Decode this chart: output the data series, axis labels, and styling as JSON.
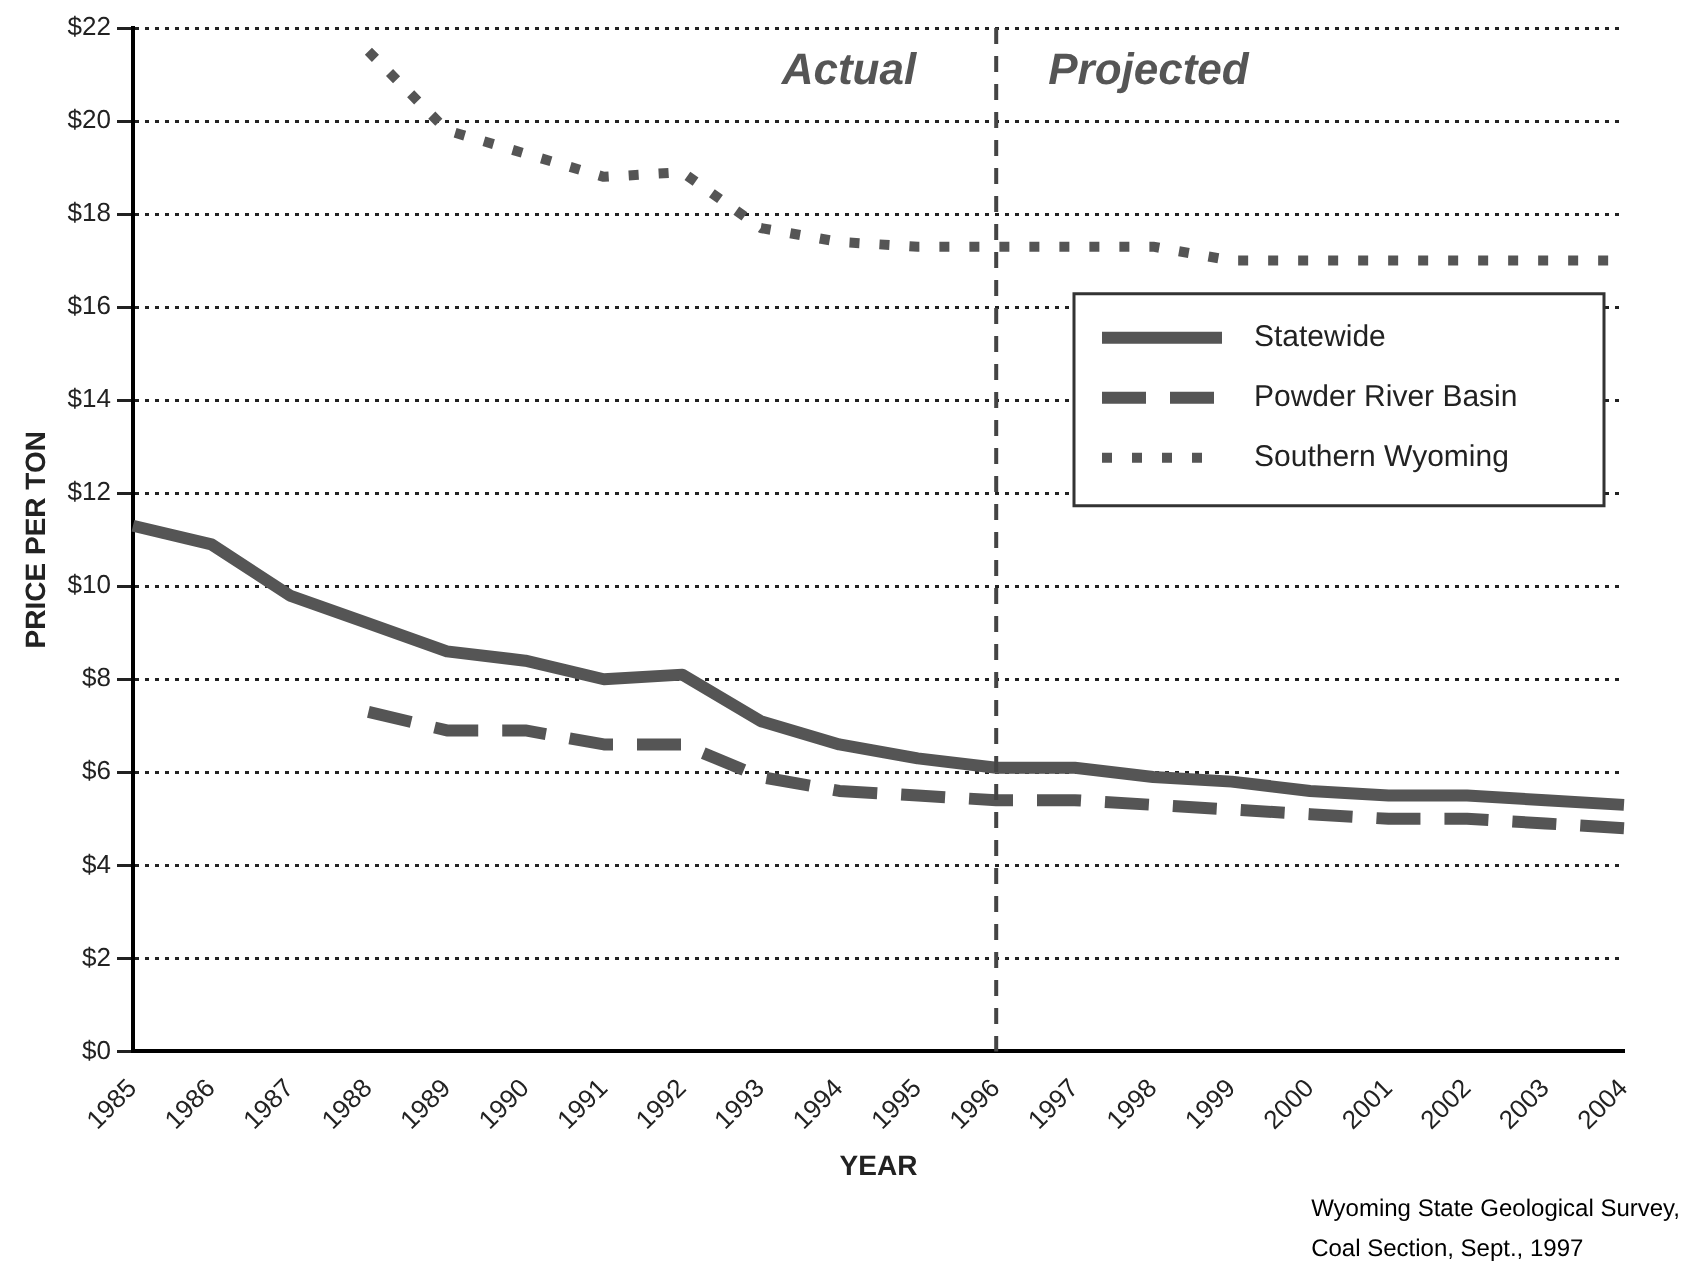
{
  "chart_data": {
    "type": "line",
    "xlabel": "YEAR",
    "ylabel": "PRICE PER TON",
    "categories": [
      "1985",
      "1986",
      "1987",
      "1988",
      "1989",
      "1990",
      "1991",
      "1992",
      "1993",
      "1994",
      "1995",
      "1996",
      "1997",
      "1998",
      "1999",
      "2000",
      "2001",
      "2002",
      "2003",
      "2004"
    ],
    "series": [
      {
        "name": "Statewide",
        "color": "#555555",
        "line_style": "solid",
        "values": [
          11.3,
          10.9,
          9.8,
          9.2,
          8.6,
          8.4,
          8.0,
          8.1,
          7.1,
          6.6,
          6.3,
          6.1,
          6.1,
          5.9,
          5.8,
          5.6,
          5.5,
          5.5,
          5.4,
          5.3
        ]
      },
      {
        "name": "Powder River Basin",
        "color": "#555555",
        "line_style": "dashed",
        "values": [
          null,
          null,
          null,
          7.3,
          6.9,
          6.9,
          6.6,
          6.6,
          5.9,
          5.6,
          5.5,
          5.4,
          5.4,
          5.3,
          5.2,
          5.1,
          5.0,
          5.0,
          4.9,
          4.8
        ]
      },
      {
        "name": "Southern Wyoming",
        "color": "#555555",
        "line_style": "dotted",
        "values": [
          null,
          null,
          null,
          21.5,
          19.8,
          19.3,
          18.8,
          18.9,
          17.7,
          17.4,
          17.3,
          17.3,
          17.3,
          17.3,
          17.0,
          17.0,
          17.0,
          17.0,
          17.0,
          17.0
        ]
      }
    ],
    "ylim": [
      0,
      22
    ],
    "yticks": [
      {
        "value": 0,
        "label": "$0"
      },
      {
        "value": 2,
        "label": "$2"
      },
      {
        "value": 4,
        "label": "$4"
      },
      {
        "value": 6,
        "label": "$6"
      },
      {
        "value": 8,
        "label": "$8"
      },
      {
        "value": 10,
        "label": "$10"
      },
      {
        "value": 12,
        "label": "$12"
      },
      {
        "value": 14,
        "label": "$14"
      },
      {
        "value": 16,
        "label": "$16"
      },
      {
        "value": 18,
        "label": "$18"
      },
      {
        "value": 20,
        "label": "$20"
      },
      {
        "value": 22,
        "label": "$22"
      }
    ],
    "grid": "y",
    "legend": "right",
    "marker": "none",
    "ref_lines": [
      {
        "axis": "x",
        "value": "1996",
        "line_style": "dashed",
        "color": "#444444"
      }
    ],
    "annotations": [
      "Actual",
      "Projected",
      "Wyoming State Geological Survey,\nCoal Section, Sept., 1997"
    ]
  }
}
